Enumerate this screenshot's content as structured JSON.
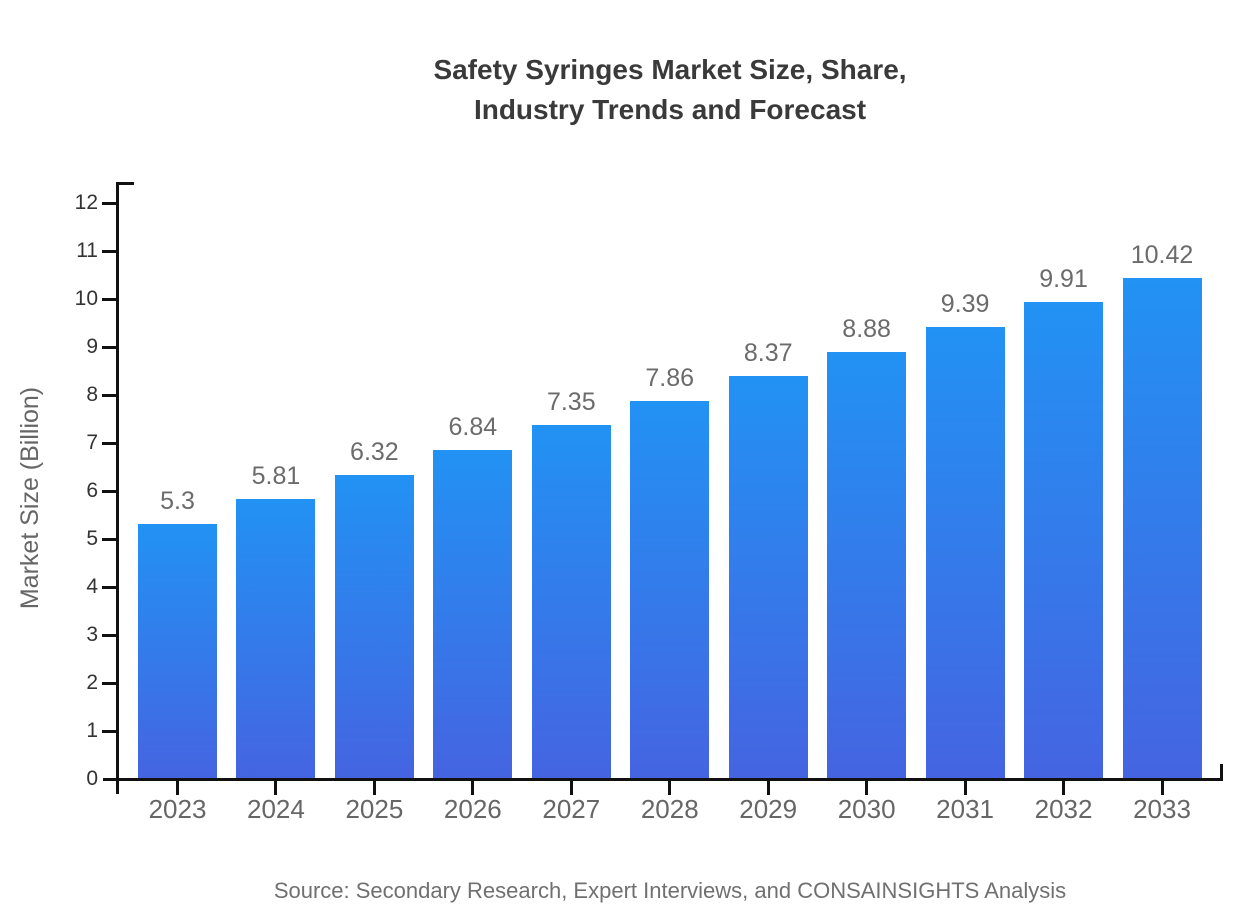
{
  "chart_data": {
    "type": "bar",
    "title_lines": [
      "Safety Syringes Market Size, Share,",
      "Industry Trends and Forecast"
    ],
    "categories": [
      "2023",
      "2024",
      "2025",
      "2026",
      "2027",
      "2028",
      "2029",
      "2030",
      "2031",
      "2032",
      "2033"
    ],
    "values": [
      5.3,
      5.81,
      6.32,
      6.84,
      7.35,
      7.86,
      8.37,
      8.88,
      9.39,
      9.91,
      10.42
    ],
    "value_labels": [
      "5.3",
      "5.81",
      "6.32",
      "6.84",
      "7.35",
      "7.86",
      "8.37",
      "8.88",
      "9.39",
      "9.91",
      "10.42"
    ],
    "xlabel": "",
    "ylabel": "Market Size (Billion)",
    "ylim": [
      0,
      12
    ],
    "y_ticks": [
      0,
      1,
      2,
      3,
      4,
      5,
      6,
      7,
      8,
      9,
      10,
      11,
      12
    ],
    "grid": false,
    "legend": false,
    "source": "Source: Secondary Research, Expert Interviews, and CONSAINSIGHTS Analysis",
    "colors": {
      "bar_gradient_top": "#2292f4",
      "bar_gradient_bottom": "#4564e1",
      "axis": "#111111",
      "title": "#3a3a3a",
      "y_tick_label": "#333333",
      "x_tick_label": "#666666",
      "value_label": "#6b6b6b",
      "y_axis_title": "#666666",
      "source": "#707070",
      "background": "#ffffff"
    }
  }
}
